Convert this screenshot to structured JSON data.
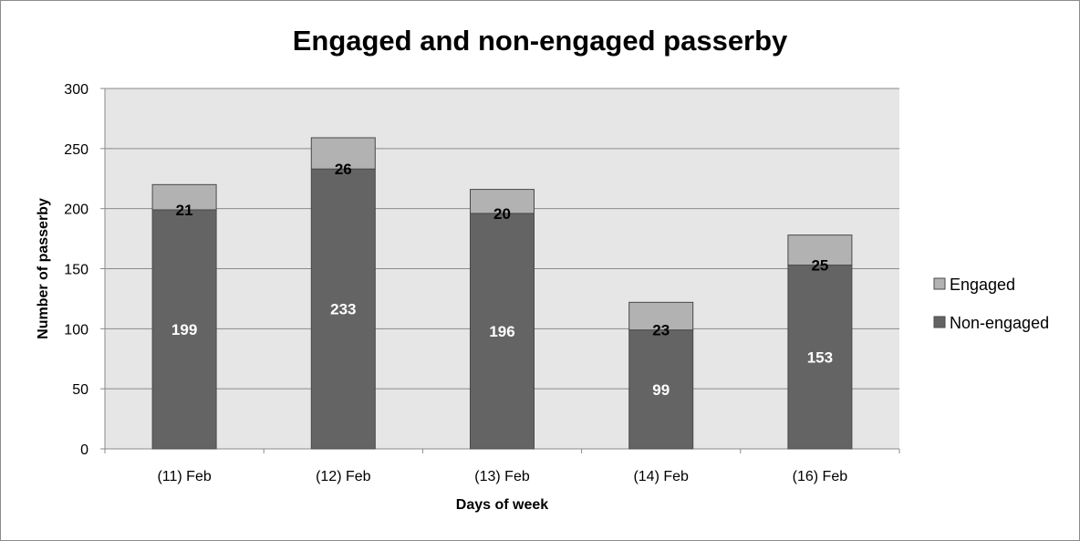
{
  "chart_data": {
    "type": "bar",
    "stacked": true,
    "title": "Engaged and non-engaged passerby",
    "xlabel": "Days of week",
    "ylabel": "Number of passerby",
    "categories": [
      "(11) Feb",
      "(12) Feb",
      "(13) Feb",
      "(14) Feb",
      "(16) Feb"
    ],
    "series": [
      {
        "name": "Non-engaged",
        "values": [
          199,
          233,
          196,
          99,
          153
        ],
        "color": "#646464",
        "label_color": "#ffffff"
      },
      {
        "name": "Engaged",
        "values": [
          21,
          26,
          20,
          23,
          25
        ],
        "color": "#b2b2b2",
        "label_color": "#000000"
      }
    ],
    "ylim": [
      0,
      300
    ],
    "yticks": [
      0,
      50,
      100,
      150,
      200,
      250,
      300
    ],
    "grid": true,
    "plot_background": "#e6e6e6",
    "legend_position": "right"
  }
}
